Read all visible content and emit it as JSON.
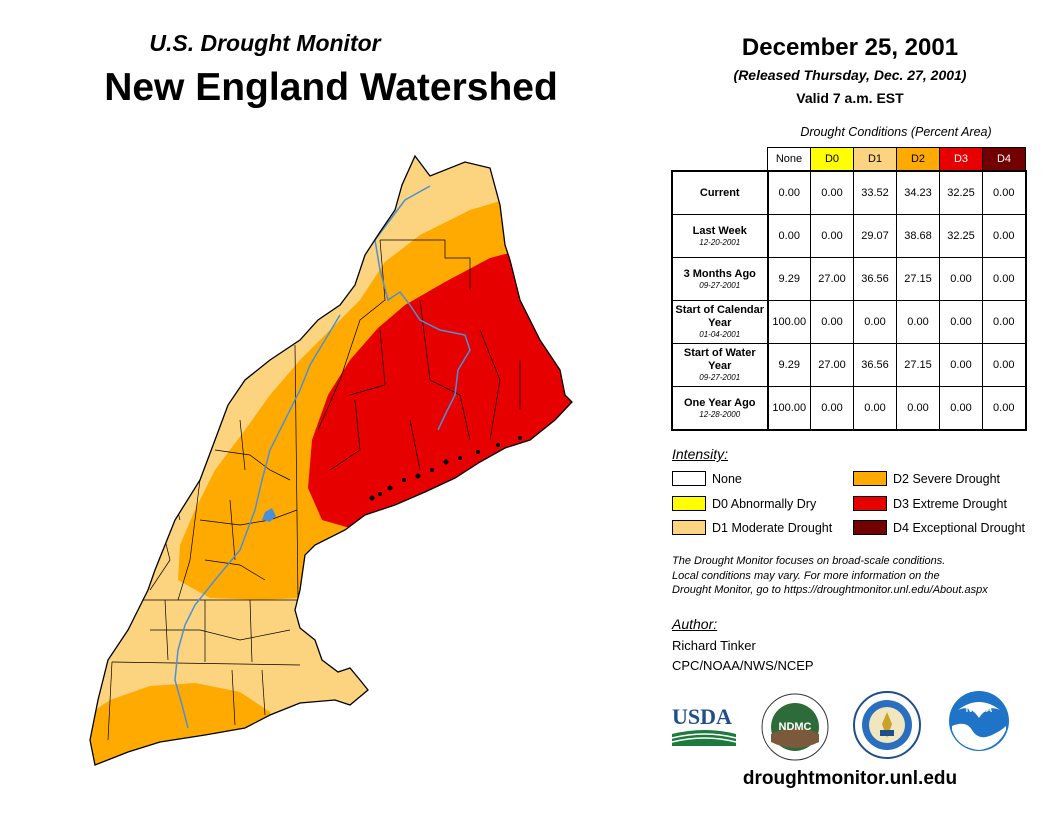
{
  "header": {
    "subtitle": "U.S. Drought Monitor",
    "title": "New England Watershed",
    "date": "December 25, 2001",
    "released": "(Released Thursday, Dec. 27, 2001)",
    "valid": "Valid 7 a.m. EST"
  },
  "table": {
    "caption": "Drought Conditions (Percent Area)",
    "columns": [
      {
        "label": "None",
        "color": "#ffffff",
        "text_color": "#000000"
      },
      {
        "label": "D0",
        "color": "#ffff00",
        "text_color": "#000000"
      },
      {
        "label": "D1",
        "color": "#fcd37f",
        "text_color": "#000000"
      },
      {
        "label": "D2",
        "color": "#ffaa00",
        "text_color": "#000000"
      },
      {
        "label": "D3",
        "color": "#e60000",
        "text_color": "#ffffff"
      },
      {
        "label": "D4",
        "color": "#730000",
        "text_color": "#ffffff"
      }
    ],
    "rows": [
      {
        "label": "Current",
        "date": "",
        "values": [
          "0.00",
          "0.00",
          "33.52",
          "34.23",
          "32.25",
          "0.00"
        ]
      },
      {
        "label": "Last Week",
        "date": "12-20-2001",
        "values": [
          "0.00",
          "0.00",
          "29.07",
          "38.68",
          "32.25",
          "0.00"
        ]
      },
      {
        "label": "3 Months Ago",
        "date": "09-27-2001",
        "values": [
          "9.29",
          "27.00",
          "36.56",
          "27.15",
          "0.00",
          "0.00"
        ]
      },
      {
        "label": "Start of Calendar Year",
        "date": "01-04-2001",
        "values": [
          "100.00",
          "0.00",
          "0.00",
          "0.00",
          "0.00",
          "0.00"
        ]
      },
      {
        "label": "Start of Water Year",
        "date": "09-27-2001",
        "values": [
          "9.29",
          "27.00",
          "36.56",
          "27.15",
          "0.00",
          "0.00"
        ]
      },
      {
        "label": "One Year Ago",
        "date": "12-28-2000",
        "values": [
          "100.00",
          "0.00",
          "0.00",
          "0.00",
          "0.00",
          "0.00"
        ]
      }
    ]
  },
  "legend": {
    "heading": "Intensity:",
    "items": [
      {
        "label": "None",
        "color": "#ffffff"
      },
      {
        "label": "D0 Abnormally Dry",
        "color": "#ffff00"
      },
      {
        "label": "D1 Moderate Drought",
        "color": "#fcd37f"
      },
      {
        "label": "D2 Severe Drought",
        "color": "#ffaa00"
      },
      {
        "label": "D3 Extreme Drought",
        "color": "#e60000"
      },
      {
        "label": "D4 Exceptional Drought",
        "color": "#730000"
      }
    ]
  },
  "note": [
    "The Drought Monitor focuses on broad-scale conditions.",
    "Local conditions may vary. For more information on the",
    "Drought Monitor, go to https://droughtmonitor.unl.edu/About.aspx"
  ],
  "author": {
    "heading": "Author:",
    "name": "Richard Tinker",
    "org": "CPC/NOAA/NWS/NCEP"
  },
  "logos": {
    "usda": "USDA",
    "ndmc": "NDMC",
    "noaa": "NOAA"
  },
  "website": "droughtmonitor.unl.edu",
  "map_colors": {
    "d1": "#fcd37f",
    "d2": "#ffaa00",
    "d3": "#e60000",
    "river": "#4a90d9",
    "border": "#000000"
  }
}
